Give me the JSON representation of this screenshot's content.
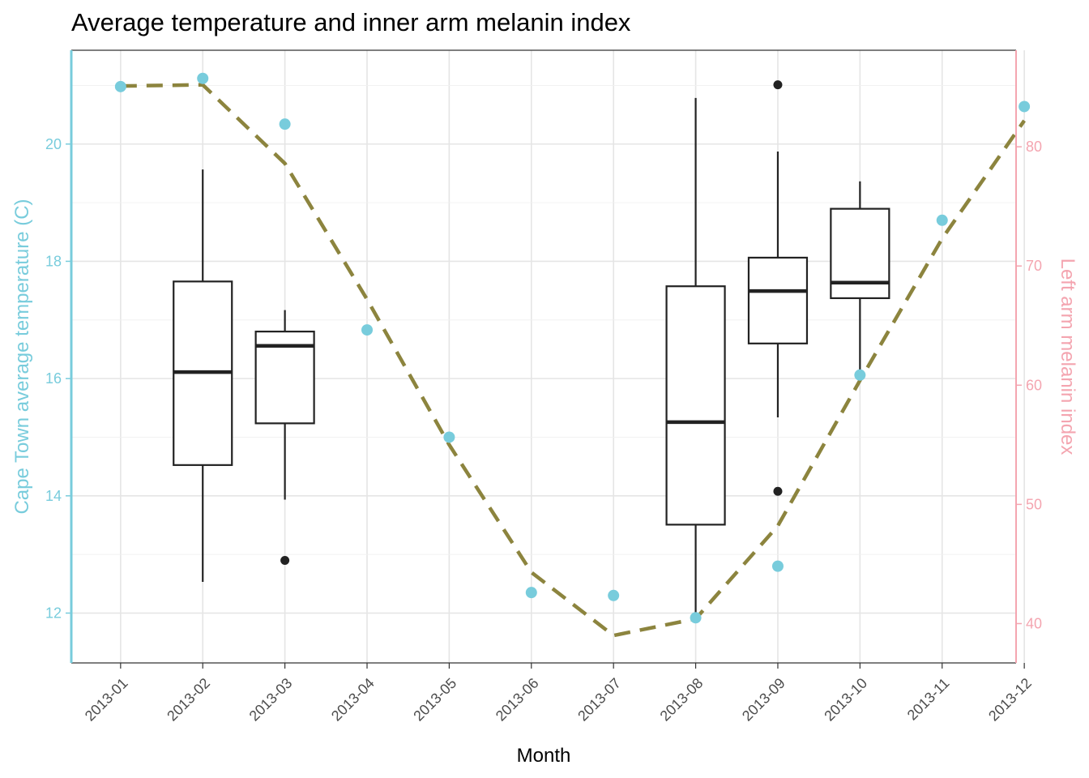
{
  "chart_data": {
    "type": "boxplot_scatter_line",
    "title": "Average temperature and inner arm melanin index",
    "xlabel": "Month",
    "ylabel_left": "Cape Town average temperature (C)",
    "ylabel_right": "Left arm melanin index",
    "categories": [
      "2013-01",
      "2013-02",
      "2013-03",
      "2013-04",
      "2013-05",
      "2013-06",
      "2013-07",
      "2013-08",
      "2013-09",
      "2013-10",
      "2013-11",
      "2013-12"
    ],
    "ylim_left": [
      11.15,
      21.6
    ],
    "ylim_right": [
      36.7,
      88.1
    ],
    "yticks_left": [
      12,
      14,
      16,
      18,
      20
    ],
    "yticks_right": [
      40,
      50,
      60,
      70,
      80
    ],
    "grid": true,
    "colors": {
      "left_axis": "#78CCDC",
      "right_axis": "#F4A5B0",
      "line": "#8C843E",
      "points": "#78CCDC",
      "box": "#222222"
    },
    "temperature_points": [
      {
        "x": "2013-01",
        "y": 20.98
      },
      {
        "x": "2013-02",
        "y": 21.12
      },
      {
        "x": "2013-03",
        "y": 20.34
      },
      {
        "x": "2013-04",
        "y": 16.83
      },
      {
        "x": "2013-05",
        "y": 15.0
      },
      {
        "x": "2013-06",
        "y": 12.35
      },
      {
        "x": "2013-07",
        "y": 12.3
      },
      {
        "x": "2013-08",
        "y": 11.92
      },
      {
        "x": "2013-09",
        "y": 12.8
      },
      {
        "x": "2013-10",
        "y": 16.06
      },
      {
        "x": "2013-11",
        "y": 18.7
      },
      {
        "x": "2013-12",
        "y": 20.64
      }
    ],
    "melanin_line": [
      {
        "x": "2013-01",
        "y": 85.1
      },
      {
        "x": "2013-02",
        "y": 85.2
      },
      {
        "x": "2013-03",
        "y": 78.6
      },
      {
        "x": "2013-04",
        "y": 67.2
      },
      {
        "x": "2013-05",
        "y": 55.0
      },
      {
        "x": "2013-06",
        "y": 44.3
      },
      {
        "x": "2013-07",
        "y": 39.0
      },
      {
        "x": "2013-08",
        "y": 40.4
      },
      {
        "x": "2013-09",
        "y": 48.2
      },
      {
        "x": "2013-10",
        "y": 60.4
      },
      {
        "x": "2013-11",
        "y": 72.3
      },
      {
        "x": "2013-12",
        "y": 82.2
      }
    ],
    "melanin_boxes": [
      {
        "x": "2013-02",
        "whisker_low": 43.5,
        "q1": 53.3,
        "median": 61.1,
        "q3": 68.7,
        "whisker_high": 78.1,
        "outliers": []
      },
      {
        "x": "2013-03",
        "whisker_low": 50.4,
        "q1": 56.8,
        "median": 63.3,
        "q3": 64.5,
        "whisker_high": 66.3,
        "outliers": [
          45.3
        ]
      },
      {
        "x": "2013-08",
        "whisker_low": 40.4,
        "q1": 48.3,
        "median": 56.9,
        "q3": 68.3,
        "whisker_high": 84.1,
        "outliers": []
      },
      {
        "x": "2013-09",
        "whisker_low": 57.3,
        "q1": 63.5,
        "median": 67.9,
        "q3": 70.7,
        "whisker_high": 79.6,
        "outliers": [
          85.2,
          51.1
        ]
      },
      {
        "x": "2013-10",
        "whisker_low": 61.3,
        "q1": 67.3,
        "median": 68.6,
        "q3": 74.8,
        "whisker_high": 77.1,
        "outliers": []
      }
    ]
  }
}
